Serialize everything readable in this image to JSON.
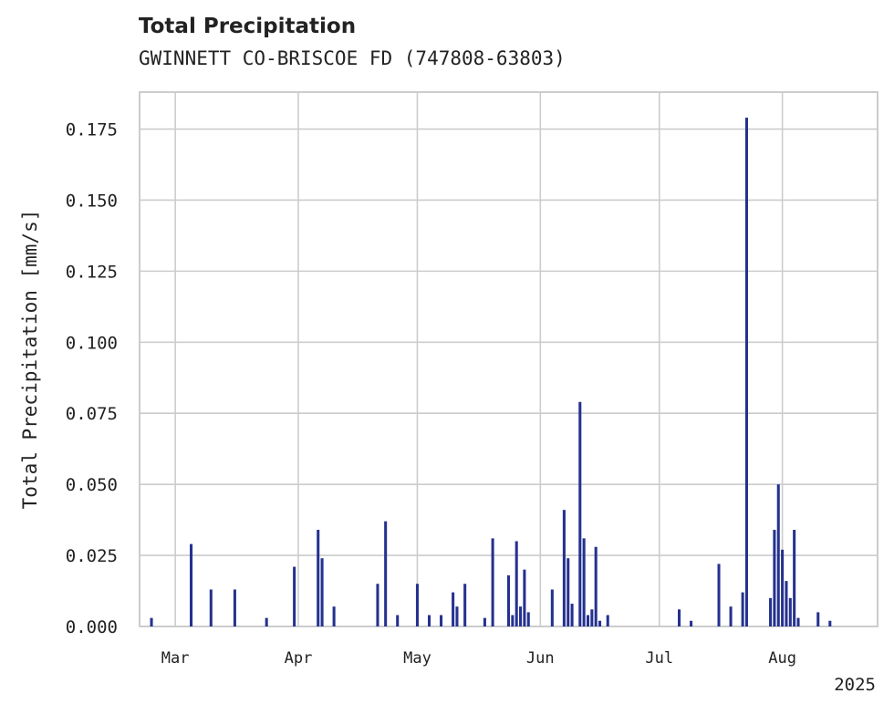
{
  "chart_data": {
    "type": "bar",
    "title": "Total Precipitation",
    "subtitle": "GWINNETT CO-BRISCOE FD (747808-63803)",
    "xlabel": "",
    "ylabel": "Total Precipitation [mm/s]",
    "ylim": [
      0,
      0.188
    ],
    "xlim": [
      "2025-02-20",
      "2025-08-25"
    ],
    "grid": true,
    "legend": "none",
    "bar_color": "#25318f",
    "x_ticks": [
      {
        "date": "2025-03-01",
        "label": "Mar"
      },
      {
        "date": "2025-04-01",
        "label": "Apr"
      },
      {
        "date": "2025-05-01",
        "label": "May"
      },
      {
        "date": "2025-06-01",
        "label": "Jun"
      },
      {
        "date": "2025-07-01",
        "label": "Jul"
      },
      {
        "date": "2025-08-01",
        "label": "Aug"
      }
    ],
    "x_offset_label": "2025",
    "y_ticks": [
      {
        "value": 0,
        "label": "0.000"
      },
      {
        "value": 0.025,
        "label": "0.025"
      },
      {
        "value": 0.05,
        "label": "0.050"
      },
      {
        "value": 0.075,
        "label": "0.075"
      },
      {
        "value": 0.1,
        "label": "0.100"
      },
      {
        "value": 0.125,
        "label": "0.125"
      },
      {
        "value": 0.15,
        "label": "0.150"
      },
      {
        "value": 0.175,
        "label": "0.175"
      }
    ],
    "series": [
      {
        "x": [
          "2025-02-23",
          "2025-03-05",
          "2025-03-10",
          "2025-03-16",
          "2025-03-24",
          "2025-03-31",
          "2025-04-06",
          "2025-04-07",
          "2025-04-10",
          "2025-04-21",
          "2025-04-23",
          "2025-04-26",
          "2025-05-01",
          "2025-05-04",
          "2025-05-07",
          "2025-05-10",
          "2025-05-11",
          "2025-05-13",
          "2025-05-18",
          "2025-05-20",
          "2025-05-24",
          "2025-05-25",
          "2025-05-26",
          "2025-05-27",
          "2025-05-28",
          "2025-05-29",
          "2025-06-04",
          "2025-06-07",
          "2025-06-08",
          "2025-06-09",
          "2025-06-11",
          "2025-06-12",
          "2025-06-13",
          "2025-06-14",
          "2025-06-15",
          "2025-06-16",
          "2025-06-18",
          "2025-07-06",
          "2025-07-09",
          "2025-07-16",
          "2025-07-19",
          "2025-07-22",
          "2025-07-23",
          "2025-07-29",
          "2025-07-30",
          "2025-07-31",
          "2025-08-01",
          "2025-08-02",
          "2025-08-03",
          "2025-08-04",
          "2025-08-05",
          "2025-08-10",
          "2025-08-13"
        ],
        "values": [
          0.003,
          0.029,
          0.013,
          0.013,
          0.003,
          0.021,
          0.034,
          0.024,
          0.007,
          0.015,
          0.037,
          0.004,
          0.015,
          0.004,
          0.004,
          0.012,
          0.007,
          0.015,
          0.003,
          0.031,
          0.018,
          0.004,
          0.03,
          0.007,
          0.02,
          0.005,
          0.013,
          0.041,
          0.024,
          0.008,
          0.079,
          0.031,
          0.004,
          0.006,
          0.028,
          0.002,
          0.004,
          0.006,
          0.002,
          0.022,
          0.007,
          0.012,
          0.179,
          0.01,
          0.034,
          0.05,
          0.027,
          0.016,
          0.01,
          0.034,
          0.003,
          0.005,
          0.002
        ]
      }
    ]
  }
}
